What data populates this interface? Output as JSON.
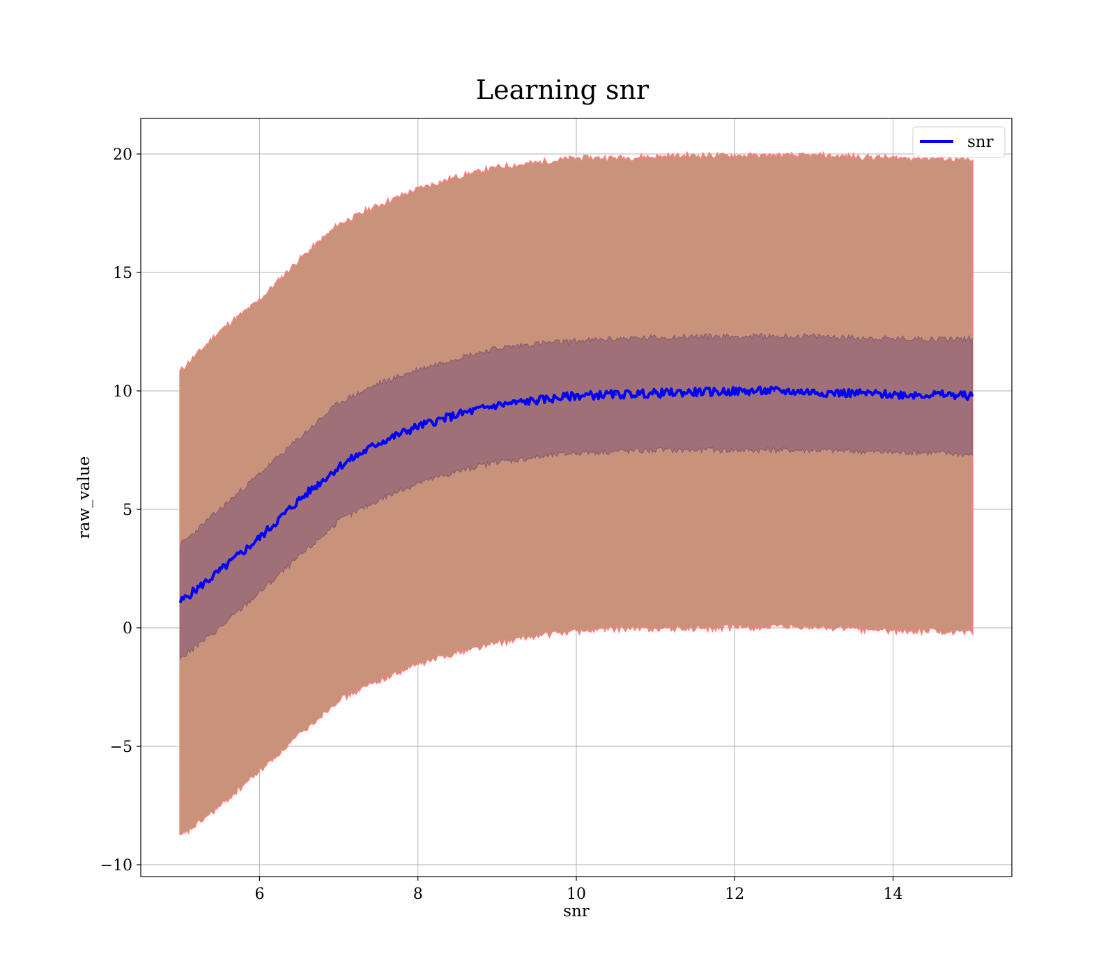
{
  "chart_data": {
    "type": "line",
    "title": "Learning snr",
    "xlabel": "snr",
    "ylabel": "raw_value",
    "xlim": [
      4.5,
      15.5
    ],
    "ylim": [
      -10.5,
      21.5
    ],
    "xticks": [
      6,
      8,
      10,
      12,
      14
    ],
    "yticks": [
      -10,
      -5,
      0,
      5,
      10,
      15,
      20
    ],
    "xtick_labels": [
      "6",
      "8",
      "10",
      "12",
      "14"
    ],
    "ytick_labels": [
      "−10",
      "−5",
      "0",
      "5",
      "10",
      "15",
      "20"
    ],
    "grid": true,
    "legend": {
      "position": "top-right",
      "entries": [
        "snr"
      ]
    },
    "colors": {
      "line": "#0000ff",
      "outer_band": "#c8937a",
      "inner_band": "#a07078",
      "outer_edge": "#ff7f7f",
      "grid": "#b0b0b0"
    },
    "series": [
      {
        "name": "snr",
        "x": [
          5.0,
          5.5,
          6.0,
          6.5,
          7.0,
          7.5,
          8.0,
          8.5,
          9.0,
          9.5,
          10.0,
          10.5,
          11.0,
          11.5,
          12.0,
          12.5,
          13.0,
          13.5,
          14.0,
          14.5,
          15.0
        ],
        "y": [
          1.1,
          2.4,
          3.8,
          5.4,
          6.8,
          7.8,
          8.5,
          9.0,
          9.4,
          9.6,
          9.8,
          9.85,
          9.9,
          9.95,
          9.98,
          10.0,
          9.95,
          9.9,
          9.85,
          9.85,
          9.8
        ],
        "outer_band_upper": [
          10.8,
          12.5,
          13.8,
          15.5,
          17.0,
          17.8,
          18.5,
          19.0,
          19.4,
          19.6,
          19.8,
          19.8,
          19.85,
          19.9,
          19.9,
          19.9,
          19.9,
          19.85,
          19.8,
          19.8,
          19.7
        ],
        "outer_band_lower": [
          -8.8,
          -7.5,
          -6.0,
          -4.5,
          -3.0,
          -2.2,
          -1.5,
          -1.0,
          -0.6,
          -0.3,
          -0.1,
          0.0,
          0.0,
          0.0,
          0.05,
          0.05,
          0.05,
          0.0,
          -0.1,
          -0.1,
          -0.2
        ],
        "inner_band_upper": [
          3.5,
          5.0,
          6.5,
          8.0,
          9.5,
          10.3,
          10.9,
          11.4,
          11.8,
          12.0,
          12.1,
          12.2,
          12.25,
          12.3,
          12.3,
          12.3,
          12.3,
          12.25,
          12.2,
          12.2,
          12.2
        ],
        "inner_band_lower": [
          -1.3,
          0.0,
          1.5,
          3.0,
          4.5,
          5.4,
          6.1,
          6.6,
          7.0,
          7.2,
          7.4,
          7.45,
          7.5,
          7.5,
          7.5,
          7.5,
          7.5,
          7.45,
          7.4,
          7.4,
          7.3
        ]
      }
    ]
  }
}
